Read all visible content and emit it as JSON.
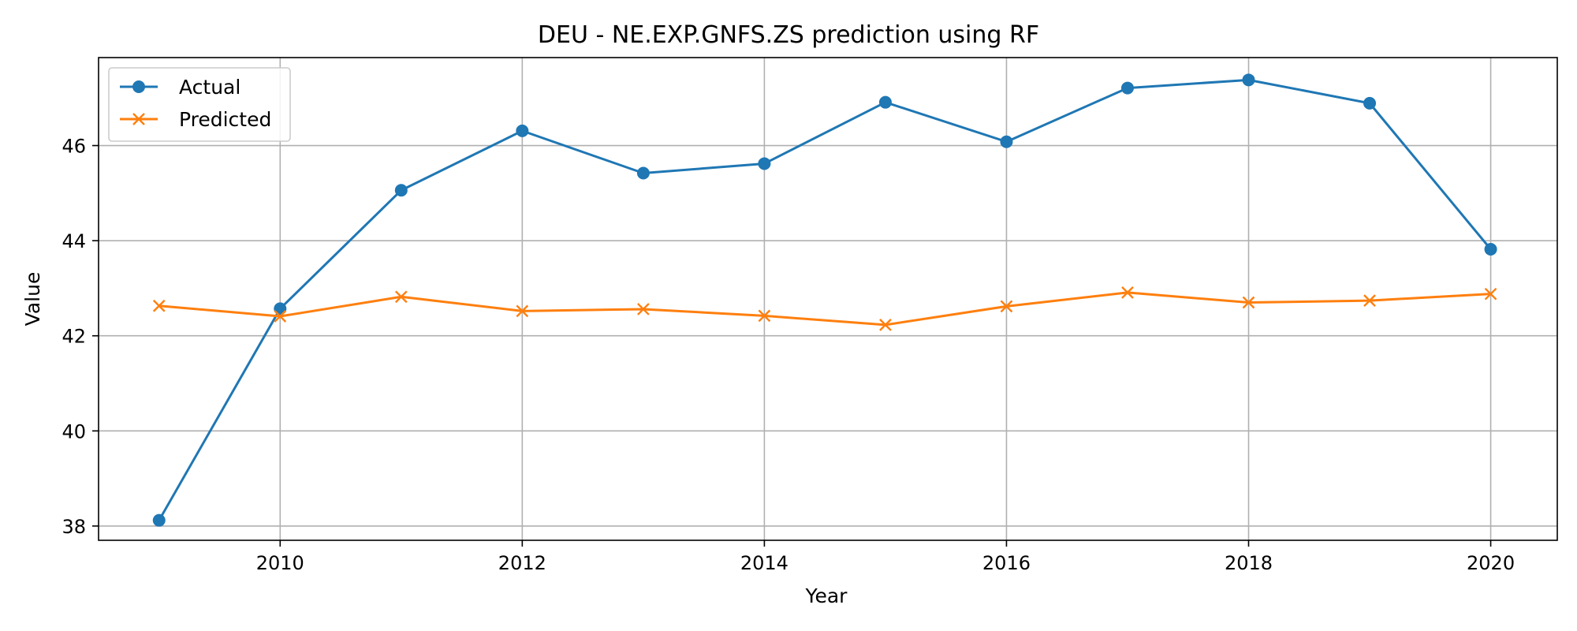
{
  "chart_data": {
    "type": "line",
    "title": "DEU - NE.EXP.GNFS.ZS prediction using RF",
    "xlabel": "Year",
    "ylabel": "Value",
    "xlim": [
      2008.5,
      2020.55
    ],
    "ylim": [
      37.7,
      47.85
    ],
    "xticks": [
      2010,
      2012,
      2014,
      2016,
      2018,
      2020
    ],
    "yticks": [
      38,
      40,
      42,
      44,
      46
    ],
    "grid": true,
    "legend_position": "top-left",
    "x": [
      2009,
      2010,
      2011,
      2012,
      2013,
      2014,
      2015,
      2016,
      2017,
      2018,
      2019,
      2020
    ],
    "series": [
      {
        "name": "Actual",
        "color": "#1f77b4",
        "marker": "circle",
        "values": [
          38.12,
          42.57,
          45.06,
          46.31,
          45.42,
          45.62,
          46.91,
          46.08,
          47.21,
          47.38,
          46.89,
          43.82
        ]
      },
      {
        "name": "Predicted",
        "color": "#ff7f0e",
        "marker": "x",
        "values": [
          42.63,
          42.41,
          42.82,
          42.52,
          42.56,
          42.42,
          42.23,
          42.62,
          42.91,
          42.7,
          42.74,
          42.88
        ]
      }
    ]
  }
}
